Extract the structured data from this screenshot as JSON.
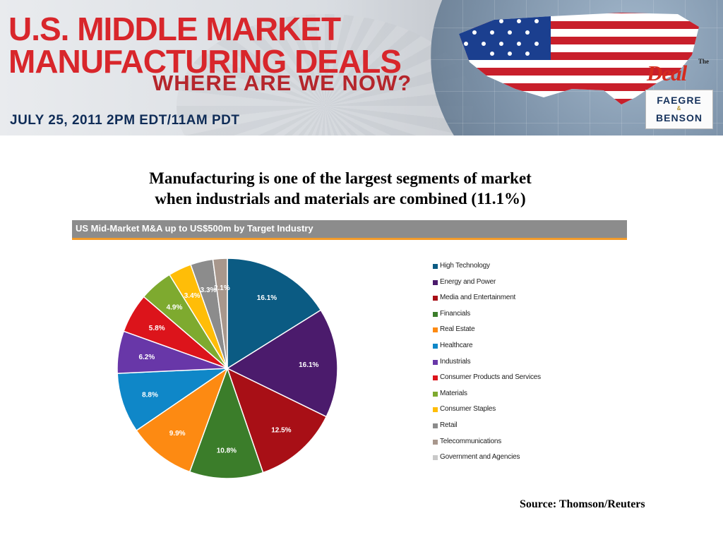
{
  "banner": {
    "title_line1": "U.S. MIDDLE MARKET",
    "title_line2": "MANUFACTURING DEALS",
    "subtitle": "WHERE ARE WE NOW?",
    "date": "JULY 25, 2011 2PM EDT/11AM PDT",
    "logo_deal": "Deal",
    "logo_the": "The",
    "logo_firm_line1": "FAEGRE",
    "logo_firm_amp": "&",
    "logo_firm_line2": "BENSON"
  },
  "headline": {
    "line1": "Manufacturing is one of the largest segments of market",
    "line2": "when industrials and materials are combined (11.1%)"
  },
  "source": "Source: Thomson/Reuters",
  "chart_data": {
    "type": "pie",
    "title": "US Mid-Market M&A up to US$500m by Target Industry",
    "legend_position": "right",
    "slices": [
      {
        "name": "High Technology",
        "value": 16.1,
        "label": "16.1%",
        "color": "#0b5b83"
      },
      {
        "name": "Energy and Power",
        "value": 16.1,
        "label": "16.1%",
        "color": "#4b1b6c"
      },
      {
        "name": "Media and Entertainment",
        "value": 12.5,
        "label": "12.5%",
        "color": "#a80f16"
      },
      {
        "name": "Financials",
        "value": 10.8,
        "label": "10.8%",
        "color": "#3b7d2a"
      },
      {
        "name": "Real Estate",
        "value": 9.9,
        "label": "9.9%",
        "color": "#fd8a12"
      },
      {
        "name": "Healthcare",
        "value": 8.8,
        "label": "8.8%",
        "color": "#0f87c8"
      },
      {
        "name": "Industrials",
        "value": 6.2,
        "label": "6.2%",
        "color": "#6837a8"
      },
      {
        "name": "Consumer Products and Services",
        "value": 5.8,
        "label": "5.8%",
        "color": "#dc141b"
      },
      {
        "name": "Materials",
        "value": 4.9,
        "label": "4.9%",
        "color": "#7eaa2f"
      },
      {
        "name": "Consumer Staples",
        "value": 3.4,
        "label": "3.4%",
        "color": "#ffbd08"
      },
      {
        "name": "Retail",
        "value": 3.3,
        "label": "3.3%",
        "color": "#8c8c8c"
      },
      {
        "name": "Telecommunications",
        "value": 2.1,
        "label": "2.1%",
        "color": "#a8978c"
      },
      {
        "name": "Government and Agencies",
        "value": 0.0,
        "label": "",
        "color": "#c9c9c9"
      }
    ]
  }
}
